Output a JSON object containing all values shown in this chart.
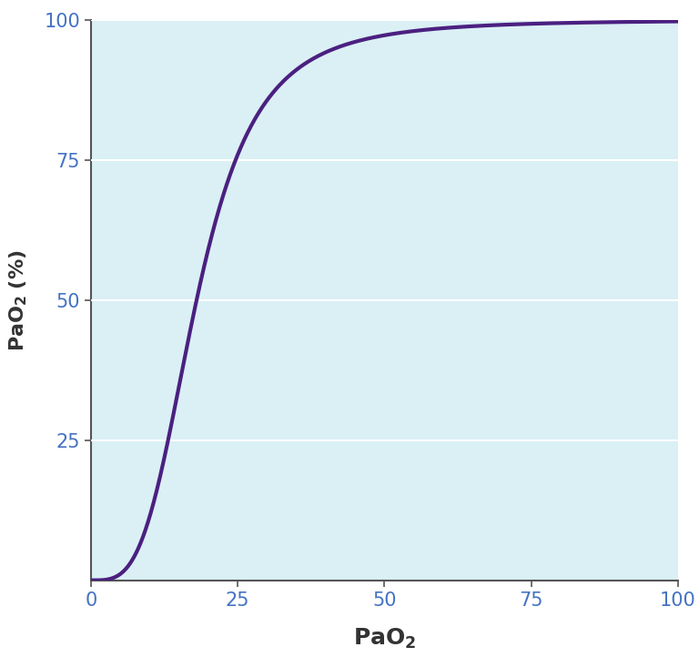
{
  "xlim": [
    0,
    100
  ],
  "ylim": [
    0,
    100
  ],
  "xticks": [
    0,
    25,
    50,
    75,
    100
  ],
  "yticks": [
    25,
    50,
    75,
    100
  ],
  "curve_color": "#4B2080",
  "axes_facecolor": "#DAF0F5",
  "background_color": "#ffffff",
  "grid_color": "#ffffff",
  "spine_color": "#555555",
  "tick_label_color": "#4472C4",
  "line_width": 3.0,
  "font_size_label": 18,
  "font_size_tick": 15,
  "hill_n": 3.5,
  "p50": 18.0,
  "figsize": [
    7.68,
    7.33
  ],
  "dpi": 100
}
